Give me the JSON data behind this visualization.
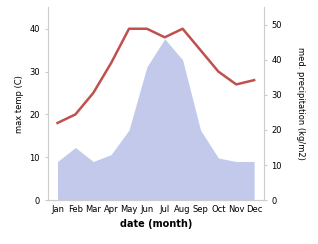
{
  "months": [
    "Jan",
    "Feb",
    "Mar",
    "Apr",
    "May",
    "Jun",
    "Jul",
    "Aug",
    "Sep",
    "Oct",
    "Nov",
    "Dec"
  ],
  "temperature": [
    18,
    20,
    25,
    32,
    40,
    40,
    38,
    40,
    35,
    30,
    27,
    28
  ],
  "precipitation": [
    11,
    15,
    11,
    13,
    20,
    38,
    46,
    40,
    20,
    12,
    11,
    11
  ],
  "temp_color": "#c0504d",
  "precip_color_fill": "#b8c0e8",
  "xlabel": "date (month)",
  "ylabel_left": "max temp (C)",
  "ylabel_right": "med. precipitation (kg/m2)",
  "ylim_left": [
    0,
    45
  ],
  "ylim_right": [
    0,
    55
  ],
  "yticks_left": [
    0,
    10,
    20,
    30,
    40
  ],
  "yticks_right": [
    0,
    10,
    20,
    30,
    40,
    50
  ],
  "temp_linewidth": 1.8,
  "bg_color": "#ffffff",
  "spine_color": "#cccccc",
  "tick_fontsize": 6,
  "label_fontsize": 6,
  "xlabel_fontsize": 7
}
